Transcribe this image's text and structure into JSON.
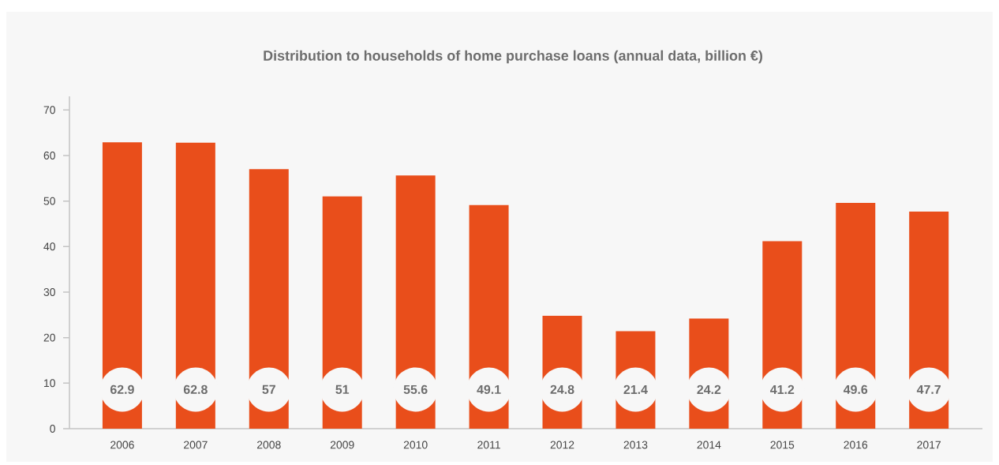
{
  "chart_data": {
    "type": "bar",
    "title": "Distribution to households of home purchase loans (annual data, billion €)",
    "categories": [
      "2006",
      "2007",
      "2008",
      "2009",
      "2010",
      "2011",
      "2012",
      "2013",
      "2014",
      "2015",
      "2016",
      "2017"
    ],
    "values": [
      62.9,
      62.8,
      57,
      51,
      55.6,
      49.1,
      24.8,
      21.4,
      24.2,
      41.2,
      49.6,
      47.7
    ],
    "color": "#e94e1b",
    "ylim": [
      0,
      73
    ],
    "yticks": [
      0,
      10,
      20,
      30,
      40,
      50,
      60,
      70
    ],
    "data_labels": true,
    "grid": false
  }
}
